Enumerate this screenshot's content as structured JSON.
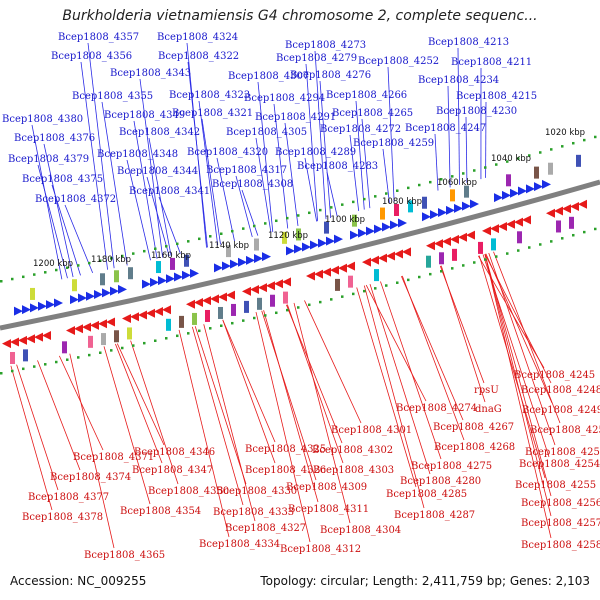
{
  "title": "Burkholderia vietnamiensis G4 chromosome 2, complete sequenc...",
  "footer": {
    "accession": "Accession: NC_009255",
    "topology": "Topology: circular; Length: 2,411,759 bp; Genes: 2,103"
  },
  "colors": {
    "upper_label": "#1a1acc",
    "lower_label": "#cc1010",
    "backbone": "#808080",
    "scale_dots": "#2aa02a"
  },
  "scale_ticks": [
    "1200 kbp",
    "1180 kbp",
    "1160 kbp",
    "1140 kbp",
    "1120 kbp",
    "1100 kbp",
    "1080 kbp",
    "1060 kbp",
    "1040 kbp",
    "1020 kbp"
  ],
  "upper_labels": [
    "Bcep1808_4357",
    "Bcep1808_4324",
    "Bcep1808_4356",
    "Bcep1808_4322",
    "Bcep1808_4343",
    "Bcep1808_4355",
    "Bcep1808_4349",
    "Bcep1808_4342",
    "Bcep1808_4348",
    "Bcep1808_4344",
    "Bcep1808_4341",
    "Bcep1808_4380",
    "Bcep1808_4376",
    "Bcep1808_4379",
    "Bcep1808_4375",
    "Bcep1808_4372",
    "Bcep1808_4307",
    "Bcep1808_4323",
    "Bcep1808_4321",
    "Bcep1808_4320",
    "Bcep1808_4317",
    "Bcep1808_4308",
    "Bcep1808_4273",
    "Bcep1808_4279",
    "Bcep1808_4276",
    "Bcep1808_4294",
    "Bcep1808_4291",
    "Bcep1808_4305",
    "Bcep1808_4289",
    "Bcep1808_4283",
    "Bcep1808_4266",
    "Bcep1808_4265",
    "Bcep1808_4272",
    "Bcep1808_4259",
    "Bcep1808_4252",
    "Bcep1808_4213",
    "Bcep1808_4211",
    "Bcep1808_4234",
    "Bcep1808_4215",
    "Bcep1808_4230",
    "Bcep1808_4247"
  ],
  "lower_labels": [
    "Bcep1808_4245",
    "Bcep1808_4248",
    "Bcep1808_4249",
    "Bcep1808_4250",
    "Bcep1808_4251",
    "Bcep1808_4254",
    "Bcep1808_4255",
    "Bcep1808_4256",
    "Bcep1808_4257",
    "Bcep1808_4258",
    "rpsU",
    "dnaG",
    "Bcep1808_4274",
    "Bcep1808_4267",
    "Bcep1808_4268",
    "Bcep1808_4275",
    "Bcep1808_4280",
    "Bcep1808_4285",
    "Bcep1808_4287",
    "Bcep1808_4301",
    "Bcep1808_4302",
    "Bcep1808_4303",
    "Bcep1808_4309",
    "Bcep1808_4311",
    "Bcep1808_4304",
    "Bcep1808_4312",
    "Bcep1808_4325",
    "Bcep1808_4326",
    "Bcep1808_4330",
    "Bcep1808_4333",
    "Bcep1808_4327",
    "Bcep1808_4334",
    "Bcep1808_4346",
    "Bcep1808_4347",
    "Bcep1808_4350",
    "Bcep1808_4354",
    "Bcep1808_4365",
    "Bcep1808_4371",
    "Bcep1808_4374",
    "Bcep1808_4377",
    "Bcep1808_4378"
  ]
}
